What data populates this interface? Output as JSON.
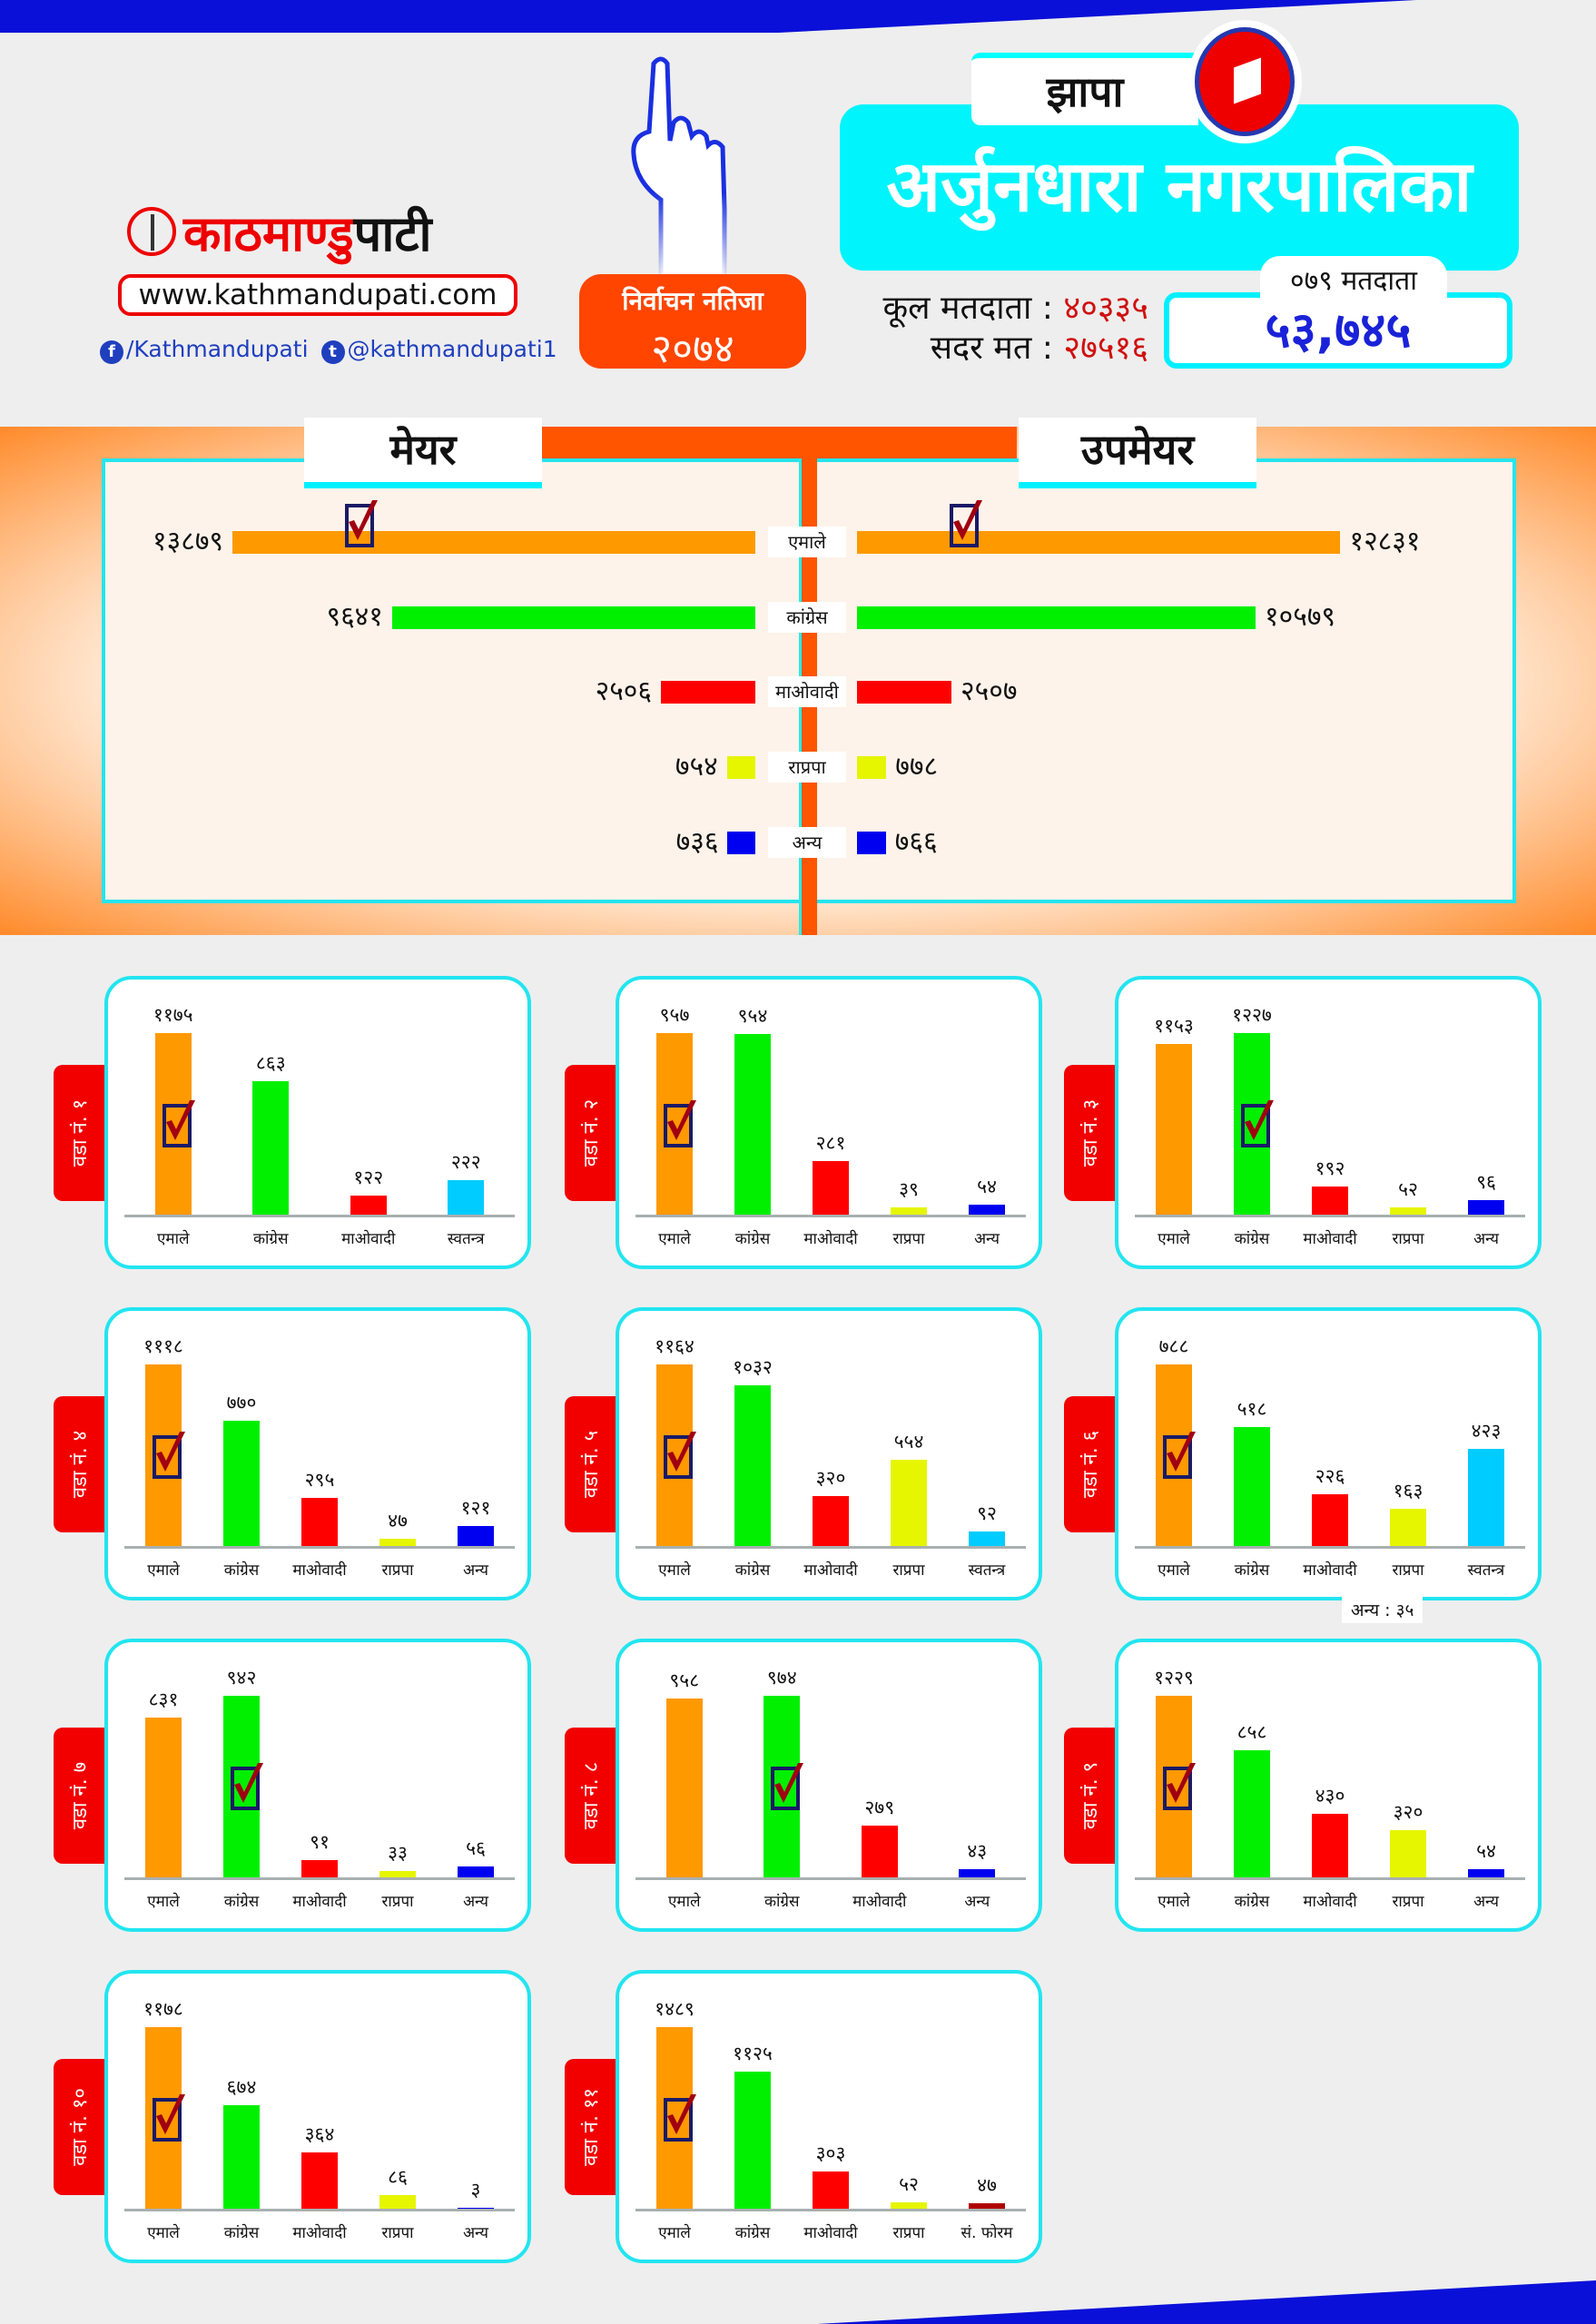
{
  "header": {
    "logo_red": "काठमाण्डु",
    "logo_black": "पाटी",
    "website": "www.kathmandupati.com",
    "facebook": "/Kathmandupati",
    "twitter": "@kathmandupati1",
    "result_label": "निर्वाचन नतिजा",
    "result_year": "२०७४",
    "district": "झापा",
    "municipality": "अर्जुनधारा नगरपालिका",
    "total_voters_label": "कूल मतदाता :",
    "total_voters": "४०३३५",
    "valid_votes_label": "सदर मत :",
    "valid_votes": "२७५१६",
    "voters_079_label": "०७९ मतदाता",
    "voters_079": "५३,७४५"
  },
  "colors": {
    "एमाले": "#ff9900",
    "कांग्रेस": "#00f000",
    "माओवादी": "#ff0000",
    "राप्रपा": "#e6f500",
    "अन्य": "#0000f0",
    "स्वतन्त्र": "#00ccff",
    "सं. फोरम": "#b00000"
  },
  "mayor_section": {
    "mayor_title": "मेयर",
    "deputy_title": "उपमेयर",
    "rows": [
      {
        "party": "एमाले",
        "mayor": 13879,
        "mayor_label": "१३८७९",
        "deputy": 12831,
        "deputy_label": "१२८३१",
        "mayor_winner": true,
        "deputy_winner": true
      },
      {
        "party": "कांग्रेस",
        "mayor": 9641,
        "mayor_label": "९६४१",
        "deputy": 10579,
        "deputy_label": "१०५७९"
      },
      {
        "party": "माओवादी",
        "mayor": 2506,
        "mayor_label": "२५०६",
        "deputy": 2507,
        "deputy_label": "२५०७"
      },
      {
        "party": "राप्रपा",
        "mayor": 754,
        "mayor_label": "७५४",
        "deputy": 778,
        "deputy_label": "७७८"
      },
      {
        "party": "अन्य",
        "mayor": 736,
        "mayor_label": "७३६",
        "deputy": 766,
        "deputy_label": "७६६"
      }
    ]
  },
  "chart_data": [
    {
      "type": "bar",
      "title": "वडा नं. १",
      "categories": [
        "एमाले",
        "कांग्रेस",
        "माओवादी",
        "स्वतन्त्र"
      ],
      "values": [
        1175,
        863,
        122,
        222
      ],
      "labels": [
        "११७५",
        "८६३",
        "१२२",
        "२२२"
      ],
      "winner": 0
    },
    {
      "type": "bar",
      "title": "वडा नं. २",
      "categories": [
        "एमाले",
        "कांग्रेस",
        "माओवादी",
        "राप्रपा",
        "अन्य"
      ],
      "values": [
        957,
        954,
        281,
        39,
        54
      ],
      "labels": [
        "९५७",
        "९५४",
        "२८१",
        "३९",
        "५४"
      ],
      "winner": 0
    },
    {
      "type": "bar",
      "title": "वडा नं. ३",
      "categories": [
        "एमाले",
        "कांग्रेस",
        "माओवादी",
        "राप्रपा",
        "अन्य"
      ],
      "values": [
        1153,
        1227,
        192,
        52,
        96
      ],
      "labels": [
        "११५३",
        "१२२७",
        "१९२",
        "५२",
        "९६"
      ],
      "winner": 1
    },
    {
      "type": "bar",
      "title": "वडा नं. ४",
      "categories": [
        "एमाले",
        "कांग्रेस",
        "माओवादी",
        "राप्रपा",
        "अन्य"
      ],
      "values": [
        1118,
        770,
        295,
        47,
        121
      ],
      "labels": [
        "१११८",
        "७७०",
        "२९५",
        "४७",
        "१२१"
      ],
      "winner": 0
    },
    {
      "type": "bar",
      "title": "वडा नं. ५",
      "categories": [
        "एमाले",
        "कांग्रेस",
        "माओवादी",
        "राप्रपा",
        "स्वतन्त्र"
      ],
      "values": [
        1164,
        1032,
        320,
        554,
        92
      ],
      "labels": [
        "११६४",
        "१०३२",
        "३२०",
        "५५४",
        "९२"
      ],
      "winner": 0
    },
    {
      "type": "bar",
      "title": "वडा नं. ६",
      "categories": [
        "एमाले",
        "कांग्रेस",
        "माओवादी",
        "राप्रपा",
        "स्वतन्त्र"
      ],
      "values": [
        788,
        518,
        226,
        163,
        423
      ],
      "labels": [
        "७८८",
        "५१८",
        "२२६",
        "१६३",
        "४२३"
      ],
      "winner": 0,
      "note": "अन्य : ३५"
    },
    {
      "type": "bar",
      "title": "वडा नं. ७",
      "categories": [
        "एमाले",
        "कांग्रेस",
        "माओवादी",
        "राप्रपा",
        "अन्य"
      ],
      "values": [
        831,
        942,
        91,
        33,
        56
      ],
      "labels": [
        "८३१",
        "९४२",
        "९१",
        "३३",
        "५६"
      ],
      "winner": 1
    },
    {
      "type": "bar",
      "title": "वडा नं. ८",
      "categories": [
        "एमाले",
        "कांग्रेस",
        "माओवादी",
        "अन्य"
      ],
      "values": [
        958,
        974,
        279,
        43
      ],
      "labels": [
        "९५८",
        "९७४",
        "२७९",
        "४३"
      ],
      "winner": 1
    },
    {
      "type": "bar",
      "title": "वडा नं. ९",
      "categories": [
        "एमाले",
        "कांग्रेस",
        "माओवादी",
        "राप्रपा",
        "अन्य"
      ],
      "values": [
        1229,
        858,
        430,
        320,
        54
      ],
      "labels": [
        "१२२९",
        "८५८",
        "४३०",
        "३२०",
        "५४"
      ],
      "winner": 0
    },
    {
      "type": "bar",
      "title": "वडा नं. १०",
      "categories": [
        "एमाले",
        "कांग्रेस",
        "माओवादी",
        "राप्रपा",
        "अन्य"
      ],
      "values": [
        1178,
        674,
        364,
        86,
        3
      ],
      "labels": [
        "११७८",
        "६७४",
        "३६४",
        "८६",
        "३"
      ],
      "winner": 0
    },
    {
      "type": "bar",
      "title": "वडा नं. ११",
      "categories": [
        "एमाले",
        "कांग्रेस",
        "माओवादी",
        "राप्रपा",
        "सं. फोरम"
      ],
      "values": [
        1489,
        1125,
        303,
        52,
        47
      ],
      "labels": [
        "१४८९",
        "११२५",
        "३०३",
        "५२",
        "४७"
      ],
      "winner": 0
    }
  ]
}
